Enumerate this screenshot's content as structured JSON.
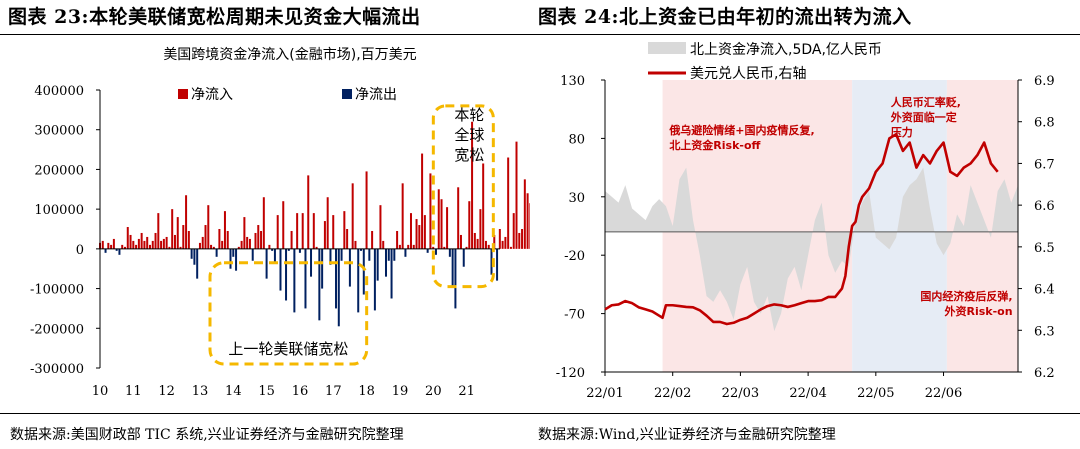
{
  "panel_left": {
    "title": "图表 23:本轮美联储宽松周期未见资金大幅流出",
    "source": "数据来源:美国财政部 TIC 系统,兴业证券经济与金融研究院整理"
  },
  "panel_right": {
    "title": "图表 24:北上资金已由年初的流出转为流入",
    "source": "数据来源:Wind,兴业证券经济与金融研究院整理"
  },
  "colors": {
    "inflow": "#c00000",
    "outflow": "#002060",
    "dashed_box": "#f5b800",
    "area": "#d9d9d9",
    "fx_line": "#c00000",
    "shade_pink": "#fbe6e6",
    "shade_blue": "#e6ecf5"
  },
  "chart_data": [
    {
      "type": "bar",
      "title": "美国跨境资金净流入(金融市场),百万美元",
      "ylim": [
        -300000,
        400000
      ],
      "yticks": [
        400000,
        300000,
        200000,
        100000,
        0,
        -100000,
        -200000,
        -300000
      ],
      "ytick_labels": [
        "400000",
        "300000",
        "200000",
        "100000",
        "0",
        "-100000",
        "-200000",
        "-300000"
      ],
      "xlim": [
        10,
        22
      ],
      "xticks": [
        10,
        11,
        12,
        13,
        14,
        15,
        16,
        17,
        18,
        19,
        20,
        21
      ],
      "xtick_labels": [
        "10",
        "11",
        "12",
        "13",
        "14",
        "15",
        "16",
        "17",
        "18",
        "19",
        "20",
        "21"
      ],
      "legend": [
        "净流入",
        "净流出"
      ],
      "annotations": [
        {
          "text": "上一轮美联储宽松",
          "range": [
            13.3,
            18.0
          ]
        },
        {
          "text": "本轮全球宽松",
          "lines": [
            "本轮",
            "全球",
            "宽松"
          ],
          "range": [
            20.0,
            21.8
          ]
        }
      ],
      "x_start": 10,
      "x_step": 0.0833,
      "values": [
        15000,
        20000,
        -10000,
        15000,
        10000,
        25000,
        -5000,
        -15000,
        10000,
        5000,
        55000,
        35000,
        20000,
        10000,
        25000,
        40000,
        20000,
        30000,
        10000,
        20000,
        40000,
        90000,
        20000,
        25000,
        30000,
        5000,
        100000,
        35000,
        80000,
        5000,
        60000,
        135000,
        45000,
        -25000,
        -40000,
        -75000,
        15000,
        30000,
        60000,
        110000,
        10000,
        5000,
        -20000,
        50000,
        20000,
        95000,
        45000,
        -50000,
        -20000,
        -55000,
        5000,
        20000,
        80000,
        30000,
        25000,
        -30000,
        40000,
        60000,
        45000,
        130000,
        -75000,
        10000,
        -5000,
        -35000,
        85000,
        -105000,
        120000,
        -130000,
        -5000,
        45000,
        -160000,
        90000,
        -10000,
        90000,
        -150000,
        185000,
        -70000,
        90000,
        5000,
        -180000,
        -100000,
        70000,
        130000,
        -40000,
        85000,
        -150000,
        -195000,
        -30000,
        95000,
        50000,
        -95000,
        165000,
        20000,
        -160000,
        -5000,
        -115000,
        195000,
        -30000,
        45000,
        -155000,
        -80000,
        110000,
        20000,
        -70000,
        -30000,
        -125000,
        -30000,
        45000,
        10000,
        165000,
        -20000,
        10000,
        90000,
        10000,
        75000,
        60000,
        240000,
        85000,
        -10000,
        190000,
        5000,
        -15000,
        150000,
        125000,
        5000,
        105000,
        -20000,
        -95000,
        -150000,
        155000,
        35000,
        -45000,
        5000,
        120000,
        320000,
        40000,
        25000,
        100000,
        215000,
        20000,
        10000,
        -65000,
        35000,
        -80000,
        50000,
        20000,
        30000,
        230000,
        5000,
        90000,
        270000,
        40000,
        50000,
        175000,
        140000,
        115000,
        225000,
        70000
      ]
    },
    {
      "type": "line",
      "legend": [
        "北上资金净流入,5DA,亿人民币",
        "美元兑人民币,右轴"
      ],
      "ylim_left": [
        -120,
        130
      ],
      "yticks_left": [
        130,
        80,
        30,
        -20,
        -70,
        -120
      ],
      "ytick_labels_left": [
        "130",
        "80",
        "30",
        "-20",
        "-70",
        "-120"
      ],
      "ylim_right": [
        6.2,
        6.9
      ],
      "yticks_right": [
        6.9,
        6.8,
        6.7,
        6.6,
        6.5,
        6.4,
        6.3,
        6.2
      ],
      "ytick_labels_right": [
        "6.9",
        "6.8",
        "6.7",
        "6.6",
        "6.5",
        "6.4",
        "6.3",
        "6.2"
      ],
      "xlim": [
        0,
        6.1
      ],
      "xticks": [
        0,
        1,
        2,
        3,
        4,
        5
      ],
      "xtick_labels": [
        "22/01",
        "22/02",
        "22/03",
        "22/04",
        "22/05",
        "22/06"
      ],
      "shaded_regions": [
        {
          "range": [
            0.85,
            3.65
          ],
          "color": "pink",
          "label": [
            "俄乌避险情绪+国内疫情反复,",
            "北上资金Risk-off"
          ]
        },
        {
          "range": [
            3.65,
            5.05
          ],
          "color": "blue",
          "label": [
            "人民币汇率贬,",
            "外资面临一定",
            "压力"
          ]
        },
        {
          "range": [
            5.05,
            6.1
          ],
          "color": "pink",
          "label": [
            "国内经济疫后反弹,",
            "外资Risk-on"
          ]
        }
      ],
      "series": [
        {
          "name": "北上资金净流入,5DA,亿人民币",
          "kind": "area",
          "x": [
            0,
            0.1,
            0.2,
            0.3,
            0.4,
            0.5,
            0.6,
            0.7,
            0.8,
            0.9,
            1.0,
            1.1,
            1.2,
            1.3,
            1.4,
            1.5,
            1.6,
            1.7,
            1.8,
            1.9,
            2.0,
            2.1,
            2.2,
            2.3,
            2.4,
            2.5,
            2.6,
            2.7,
            2.8,
            2.9,
            3.0,
            3.1,
            3.2,
            3.3,
            3.4,
            3.5,
            3.6,
            3.7,
            3.8,
            3.9,
            4.0,
            4.1,
            4.2,
            4.3,
            4.4,
            4.5,
            4.6,
            4.7,
            4.8,
            4.9,
            5.0,
            5.1,
            5.2,
            5.3,
            5.4,
            5.5,
            5.6,
            5.7,
            5.8,
            5.9,
            6.0,
            6.1
          ],
          "values": [
            35,
            30,
            25,
            40,
            20,
            15,
            10,
            22,
            28,
            22,
            5,
            45,
            55,
            10,
            -20,
            -55,
            -60,
            -50,
            -60,
            -75,
            -45,
            -30,
            -60,
            -70,
            -55,
            -85,
            -70,
            -40,
            -30,
            -50,
            -20,
            10,
            25,
            -20,
            -35,
            -25,
            -30,
            10,
            25,
            35,
            -5,
            -10,
            -15,
            -5,
            30,
            40,
            45,
            55,
            20,
            -10,
            -20,
            -10,
            15,
            5,
            40,
            25,
            10,
            -5,
            35,
            45,
            25,
            40
          ]
        },
        {
          "name": "美元兑人民币,右轴",
          "kind": "line",
          "x": [
            0,
            0.1,
            0.2,
            0.3,
            0.4,
            0.5,
            0.6,
            0.7,
            0.8,
            0.85,
            0.9,
            1.0,
            1.1,
            1.2,
            1.3,
            1.4,
            1.5,
            1.6,
            1.7,
            1.8,
            1.9,
            2.0,
            2.1,
            2.2,
            2.3,
            2.4,
            2.5,
            2.6,
            2.7,
            2.8,
            2.9,
            3.0,
            3.1,
            3.2,
            3.3,
            3.4,
            3.5,
            3.55,
            3.6,
            3.65,
            3.7,
            3.75,
            3.8,
            3.9,
            4.0,
            4.1,
            4.2,
            4.3,
            4.4,
            4.5,
            4.6,
            4.7,
            4.8,
            4.9,
            5.0,
            5.1,
            5.2,
            5.3,
            5.4,
            5.5,
            5.6,
            5.7,
            5.8
          ],
          "values": [
            6.35,
            6.36,
            6.362,
            6.37,
            6.365,
            6.355,
            6.35,
            6.345,
            6.335,
            6.33,
            6.36,
            6.36,
            6.358,
            6.356,
            6.355,
            6.348,
            6.335,
            6.32,
            6.32,
            6.315,
            6.318,
            6.325,
            6.33,
            6.34,
            6.35,
            6.358,
            6.362,
            6.36,
            6.356,
            6.36,
            6.365,
            6.37,
            6.37,
            6.372,
            6.38,
            6.38,
            6.4,
            6.43,
            6.5,
            6.55,
            6.56,
            6.6,
            6.62,
            6.64,
            6.68,
            6.7,
            6.76,
            6.77,
            6.73,
            6.75,
            6.69,
            6.72,
            6.7,
            6.73,
            6.75,
            6.68,
            6.67,
            6.69,
            6.7,
            6.72,
            6.75,
            6.7,
            6.68
          ]
        }
      ]
    }
  ]
}
